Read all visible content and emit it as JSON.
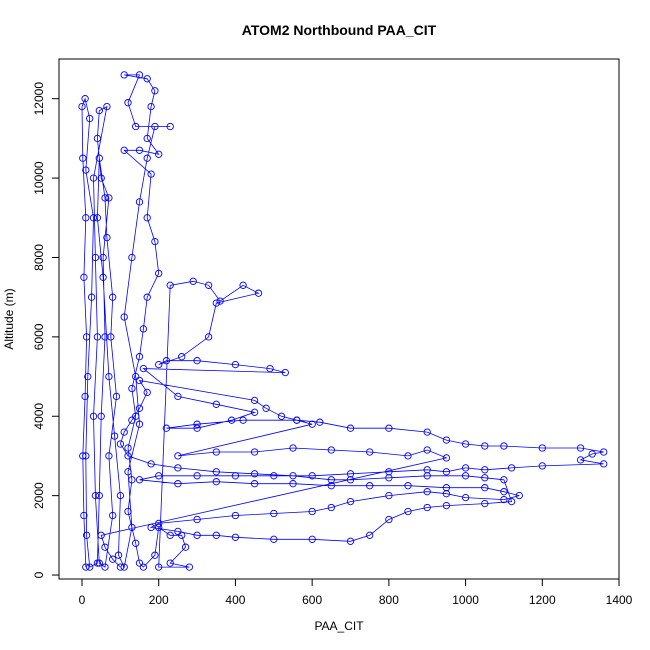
{
  "chart_data": {
    "type": "scatter",
    "title": "ATOM2 Northbound PAA_CIT",
    "xlabel": "PAA_CIT",
    "ylabel": "Altitude (m)",
    "xlim": [
      -60,
      1400
    ],
    "ylim": [
      -100,
      13000
    ],
    "xticks": [
      0,
      200,
      400,
      600,
      800,
      1000,
      1200,
      1400
    ],
    "yticks": [
      0,
      2000,
      4000,
      6000,
      8000,
      10000,
      12000
    ],
    "marker": "open-circle",
    "line": "connected",
    "color": "#0000ff",
    "grid": false,
    "series": [
      {
        "points": [
          [
            10,
            200
          ],
          [
            5,
            1500
          ],
          [
            2,
            3000
          ],
          [
            8,
            4500
          ],
          [
            12,
            6000
          ],
          [
            5,
            7500
          ],
          [
            10,
            9000
          ],
          [
            2,
            10500
          ],
          [
            0,
            11800
          ],
          [
            8,
            12000
          ],
          [
            20,
            11500
          ],
          [
            10,
            10200
          ],
          [
            30,
            9000
          ],
          [
            25,
            7000
          ],
          [
            15,
            5000
          ],
          [
            10,
            3000
          ],
          [
            12,
            1000
          ],
          [
            20,
            200
          ],
          [
            40,
            300
          ],
          [
            45,
            2000
          ],
          [
            50,
            4000
          ],
          [
            60,
            6000
          ],
          [
            55,
            8000
          ],
          [
            70,
            9500
          ],
          [
            50,
            10000
          ],
          [
            40,
            11000
          ],
          [
            45,
            11700
          ],
          [
            65,
            11800
          ],
          [
            30,
            10000
          ],
          [
            35,
            8000
          ],
          [
            40,
            6000
          ],
          [
            30,
            4000
          ],
          [
            35,
            2000
          ],
          [
            45,
            300
          ],
          [
            60,
            200
          ],
          [
            80,
            1500
          ],
          [
            70,
            3000
          ],
          [
            90,
            4500
          ],
          [
            75,
            6000
          ],
          [
            80,
            7000
          ],
          [
            65,
            8500
          ],
          [
            60,
            9500
          ],
          [
            45,
            10500
          ],
          [
            40,
            9000
          ],
          [
            55,
            7500
          ],
          [
            70,
            5000
          ],
          [
            85,
            3500
          ],
          [
            100,
            2000
          ],
          [
            95,
            500
          ],
          [
            110,
            200
          ],
          [
            130,
            1200
          ],
          [
            120,
            2600
          ],
          [
            150,
            3800
          ],
          [
            140,
            5000
          ],
          [
            110,
            6500
          ],
          [
            130,
            8000
          ],
          [
            150,
            9400
          ],
          [
            170,
            10500
          ],
          [
            190,
            11300
          ],
          [
            230,
            11300
          ],
          [
            140,
            11300
          ],
          [
            120,
            11900
          ],
          [
            150,
            12600
          ],
          [
            110,
            12600
          ],
          [
            170,
            12500
          ],
          [
            190,
            12200
          ],
          [
            180,
            11800
          ],
          [
            170,
            11000
          ],
          [
            200,
            10600
          ],
          [
            150,
            10700
          ],
          [
            110,
            10700
          ],
          [
            180,
            10100
          ],
          [
            170,
            9000
          ],
          [
            190,
            8400
          ],
          [
            200,
            7600
          ],
          [
            170,
            7000
          ],
          [
            160,
            6200
          ],
          [
            150,
            5500
          ],
          [
            130,
            4700
          ],
          [
            140,
            4000
          ],
          [
            120,
            3200
          ],
          [
            130,
            2400
          ],
          [
            120,
            1600
          ],
          [
            140,
            800
          ],
          [
            150,
            300
          ],
          [
            160,
            200
          ],
          [
            190,
            500
          ],
          [
            200,
            1200
          ],
          [
            230,
            1000
          ],
          [
            260,
            1000
          ],
          [
            270,
            700
          ],
          [
            230,
            300
          ],
          [
            280,
            200
          ],
          [
            200,
            200
          ],
          [
            230,
            7300
          ],
          [
            290,
            7400
          ],
          [
            330,
            7300
          ],
          [
            360,
            6900
          ],
          [
            420,
            7300
          ],
          [
            460,
            7100
          ],
          [
            350,
            6850
          ],
          [
            330,
            6000
          ],
          [
            260,
            5500
          ],
          [
            200,
            5300
          ],
          [
            220,
            5400
          ],
          [
            300,
            5400
          ],
          [
            400,
            5300
          ],
          [
            490,
            5200
          ],
          [
            530,
            5100
          ],
          [
            160,
            5200
          ],
          [
            250,
            4500
          ],
          [
            350,
            4300
          ],
          [
            450,
            4100
          ],
          [
            390,
            3900
          ],
          [
            300,
            3700
          ],
          [
            220,
            3700
          ],
          [
            300,
            3800
          ],
          [
            420,
            3900
          ],
          [
            560,
            3900
          ],
          [
            620,
            3850
          ],
          [
            700,
            3700
          ],
          [
            800,
            3700
          ],
          [
            900,
            3600
          ],
          [
            950,
            3400
          ],
          [
            1000,
            3300
          ],
          [
            1050,
            3250
          ],
          [
            1100,
            3250
          ],
          [
            1200,
            3200
          ],
          [
            1300,
            3200
          ],
          [
            1360,
            3100
          ],
          [
            1330,
            3050
          ],
          [
            1300,
            2900
          ],
          [
            1360,
            2800
          ],
          [
            1200,
            2750
          ],
          [
            1120,
            2700
          ],
          [
            1050,
            2650
          ],
          [
            1000,
            2700
          ],
          [
            950,
            2600
          ],
          [
            900,
            2650
          ],
          [
            800,
            2600
          ],
          [
            700,
            2550
          ],
          [
            600,
            2500
          ],
          [
            500,
            2500
          ],
          [
            400,
            2500
          ],
          [
            300,
            2500
          ],
          [
            200,
            2500
          ],
          [
            150,
            2400
          ],
          [
            250,
            2300
          ],
          [
            350,
            2350
          ],
          [
            450,
            2300
          ],
          [
            550,
            2300
          ],
          [
            650,
            2250
          ],
          [
            750,
            2250
          ],
          [
            850,
            2250
          ],
          [
            950,
            2200
          ],
          [
            1050,
            2200
          ],
          [
            1100,
            2100
          ],
          [
            1140,
            2000
          ],
          [
            1100,
            1900
          ],
          [
            1000,
            1950
          ],
          [
            950,
            2050
          ],
          [
            900,
            2100
          ],
          [
            800,
            2000
          ],
          [
            700,
            1850
          ],
          [
            650,
            1700
          ],
          [
            600,
            1600
          ],
          [
            500,
            1550
          ],
          [
            400,
            1500
          ],
          [
            300,
            1400
          ],
          [
            200,
            1300
          ],
          [
            180,
            1200
          ],
          [
            250,
            1100
          ],
          [
            300,
            1000
          ],
          [
            350,
            1000
          ],
          [
            400,
            950
          ],
          [
            500,
            900
          ],
          [
            600,
            900
          ],
          [
            700,
            850
          ],
          [
            750,
            1000
          ],
          [
            800,
            1400
          ],
          [
            850,
            1600
          ],
          [
            900,
            1700
          ],
          [
            950,
            1750
          ],
          [
            1050,
            1800
          ],
          [
            1120,
            1850
          ],
          [
            1100,
            2400
          ],
          [
            1050,
            2450
          ],
          [
            1000,
            2500
          ],
          [
            900,
            2500
          ],
          [
            800,
            2450
          ],
          [
            700,
            2400
          ],
          [
            650,
            2400
          ],
          [
            550,
            2500
          ],
          [
            450,
            2550
          ],
          [
            350,
            2600
          ],
          [
            250,
            2700
          ],
          [
            180,
            2800
          ],
          [
            120,
            3000
          ],
          [
            100,
            3300
          ],
          [
            110,
            3600
          ],
          [
            130,
            3900
          ],
          [
            150,
            4200
          ],
          [
            170,
            4600
          ],
          [
            150,
            4900
          ],
          [
            450,
            4400
          ],
          [
            480,
            4200
          ],
          [
            520,
            4000
          ],
          [
            560,
            3900
          ],
          [
            600,
            3800
          ],
          [
            250,
            3000
          ],
          [
            350,
            3100
          ],
          [
            450,
            3100
          ],
          [
            550,
            3200
          ],
          [
            650,
            3150
          ],
          [
            750,
            3100
          ],
          [
            850,
            3000
          ],
          [
            900,
            3150
          ],
          [
            950,
            2950
          ],
          [
            50,
            1000
          ],
          [
            60,
            700
          ],
          [
            80,
            400
          ],
          [
            100,
            200
          ]
        ]
      }
    ]
  }
}
